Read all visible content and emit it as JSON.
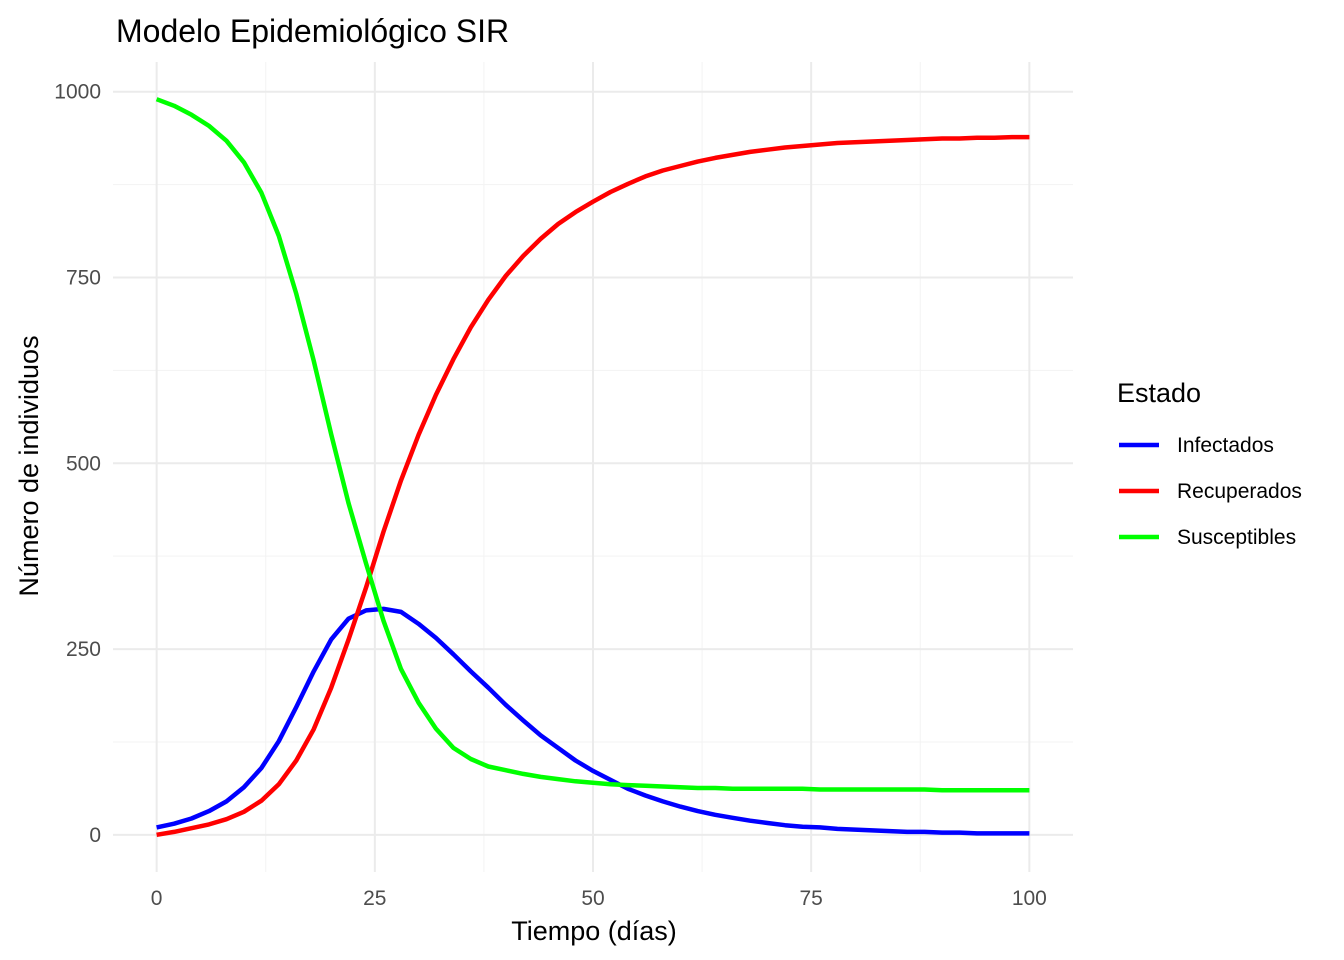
{
  "chart_data": {
    "type": "line",
    "title": "Modelo Epidemiológico SIR",
    "xlabel": "Tiempo (días)",
    "ylabel": "Número de individuos",
    "xlim": [
      -5,
      105
    ],
    "ylim": [
      -50,
      1040
    ],
    "x_ticks": [
      0,
      25,
      50,
      75,
      100
    ],
    "y_ticks": [
      0,
      250,
      500,
      750,
      1000
    ],
    "x_tick_labels": [
      "0",
      "25",
      "50",
      "75",
      "100"
    ],
    "y_tick_labels": [
      "0",
      "250",
      "500",
      "750",
      "1000"
    ],
    "grid": true,
    "legend": {
      "title": "Estado",
      "position": "right"
    },
    "x": [
      0,
      2,
      4,
      6,
      8,
      10,
      12,
      14,
      16,
      18,
      20,
      22,
      24,
      26,
      28,
      30,
      32,
      34,
      36,
      38,
      40,
      42,
      44,
      46,
      48,
      50,
      52,
      54,
      56,
      58,
      60,
      62,
      64,
      66,
      68,
      70,
      72,
      74,
      76,
      78,
      80,
      82,
      84,
      86,
      88,
      90,
      92,
      94,
      96,
      98,
      100
    ],
    "series": [
      {
        "name": "Infectados",
        "color": "#0000ff",
        "values": [
          10,
          15,
          22,
          32,
          45,
          64,
          90,
          126,
          172,
          220,
          263,
          291,
          302,
          304,
          300,
          284,
          265,
          243,
          220,
          198,
          175,
          154,
          134,
          117,
          100,
          86,
          74,
          62,
          53,
          45,
          38,
          32,
          27,
          23,
          19,
          16,
          13,
          11,
          10,
          8,
          7,
          6,
          5,
          4,
          4,
          3,
          3,
          2,
          2,
          2,
          2
        ]
      },
      {
        "name": "Recuperados",
        "color": "#ff0000",
        "values": [
          0,
          4,
          9,
          14,
          21,
          31,
          46,
          68,
          100,
          142,
          198,
          263,
          333,
          408,
          477,
          538,
          592,
          640,
          683,
          720,
          752,
          779,
          802,
          822,
          838,
          852,
          865,
          876,
          886,
          894,
          900,
          906,
          911,
          915,
          919,
          922,
          925,
          927,
          929,
          931,
          932,
          933,
          934,
          935,
          936,
          937,
          937,
          938,
          938,
          939,
          939
        ]
      },
      {
        "name": "Susceptibles",
        "color": "#00ff00",
        "values": [
          990,
          981,
          969,
          954,
          934,
          905,
          864,
          806,
          728,
          638,
          539,
          446,
          365,
          288,
          223,
          178,
          143,
          117,
          102,
          92,
          87,
          82,
          78,
          75,
          72,
          70,
          68,
          67,
          66,
          65,
          64,
          63,
          63,
          62,
          62,
          62,
          62,
          62,
          61,
          61,
          61,
          61,
          61,
          61,
          61,
          60,
          60,
          60,
          60,
          60,
          60
        ]
      }
    ]
  }
}
